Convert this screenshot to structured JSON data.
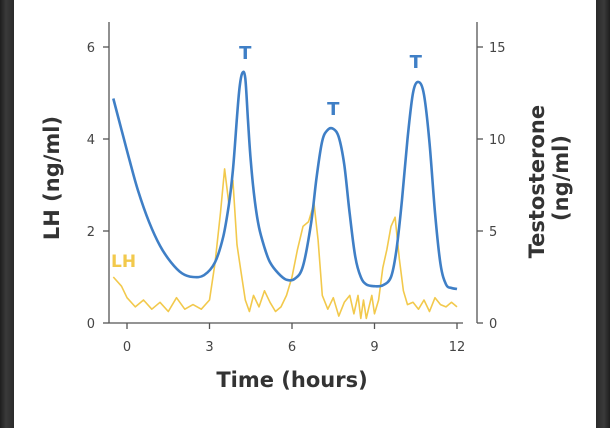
{
  "chart_data": {
    "type": "line",
    "xlabel": "Time (hours)",
    "ylabel_left": "LH (ng/ml)",
    "ylabel_right": "Testosterone (ng/ml)",
    "xlim": [
      -0.5,
      12
    ],
    "xticks": [
      0,
      3,
      6,
      9,
      12
    ],
    "ylim_left": [
      0,
      6
    ],
    "yticks_left": [
      0,
      2,
      4,
      6
    ],
    "ylim_right": [
      0,
      15
    ],
    "yticks_right": [
      0,
      5,
      10,
      15
    ],
    "grid": false,
    "colors": {
      "lh": "#f2c94c",
      "testosterone": "#3f7fc6",
      "axis": "#555555"
    },
    "series": [
      {
        "name": "LH",
        "axis": "left",
        "x": [
          -0.5,
          -0.2,
          0.0,
          0.3,
          0.6,
          0.9,
          1.2,
          1.5,
          1.8,
          2.1,
          2.4,
          2.7,
          3.0,
          3.2,
          3.4,
          3.55,
          3.7,
          3.85,
          4.0,
          4.15,
          4.3,
          4.45,
          4.6,
          4.8,
          5.0,
          5.2,
          5.4,
          5.6,
          5.8,
          6.0,
          6.2,
          6.4,
          6.6,
          6.8,
          6.95,
          7.1,
          7.3,
          7.5,
          7.7,
          7.9,
          8.1,
          8.25,
          8.4,
          8.5,
          8.6,
          8.7,
          8.8,
          8.9,
          9.0,
          9.15,
          9.3,
          9.45,
          9.6,
          9.75,
          9.9,
          10.05,
          10.2,
          10.4,
          10.6,
          10.8,
          11.0,
          11.2,
          11.4,
          11.6,
          11.8,
          12.0
        ],
        "y": [
          1.0,
          0.8,
          0.55,
          0.35,
          0.5,
          0.3,
          0.45,
          0.25,
          0.55,
          0.3,
          0.4,
          0.3,
          0.5,
          1.3,
          2.4,
          3.35,
          2.6,
          3.1,
          1.7,
          1.1,
          0.5,
          0.25,
          0.6,
          0.35,
          0.7,
          0.45,
          0.25,
          0.35,
          0.6,
          1.0,
          1.6,
          2.1,
          2.2,
          2.6,
          1.8,
          0.6,
          0.3,
          0.55,
          0.15,
          0.45,
          0.6,
          0.2,
          0.6,
          0.1,
          0.5,
          0.1,
          0.35,
          0.6,
          0.2,
          0.5,
          1.2,
          1.6,
          2.1,
          2.3,
          1.4,
          0.7,
          0.4,
          0.45,
          0.3,
          0.5,
          0.25,
          0.55,
          0.4,
          0.35,
          0.45,
          0.35
        ]
      },
      {
        "name": "Testosterone",
        "axis": "right",
        "x": [
          -0.5,
          -0.2,
          0.1,
          0.4,
          0.8,
          1.2,
          1.6,
          2.0,
          2.4,
          2.8,
          3.2,
          3.5,
          3.7,
          3.85,
          4.0,
          4.1,
          4.2,
          4.3,
          4.4,
          4.5,
          4.65,
          4.8,
          5.0,
          5.2,
          5.5,
          5.8,
          6.1,
          6.4,
          6.7,
          6.9,
          7.1,
          7.3,
          7.5,
          7.7,
          7.9,
          8.1,
          8.3,
          8.5,
          8.7,
          9.0,
          9.3,
          9.6,
          9.8,
          10.0,
          10.2,
          10.4,
          10.6,
          10.8,
          11.0,
          11.2,
          11.4,
          11.6,
          11.8,
          12.0
        ],
        "y": [
          12.2,
          10.5,
          8.8,
          7.2,
          5.5,
          4.2,
          3.3,
          2.7,
          2.5,
          2.6,
          3.3,
          4.7,
          6.4,
          8.3,
          11.2,
          12.9,
          13.6,
          13.3,
          11.0,
          8.8,
          6.6,
          5.2,
          4.1,
          3.3,
          2.7,
          2.35,
          2.4,
          3.1,
          5.5,
          8.0,
          9.9,
          10.5,
          10.55,
          10.1,
          8.6,
          5.9,
          3.6,
          2.5,
          2.1,
          2.0,
          2.05,
          2.5,
          4.0,
          6.7,
          10.0,
          12.5,
          13.1,
          12.4,
          9.8,
          6.0,
          3.2,
          2.1,
          1.9,
          1.85
        ]
      }
    ],
    "series_labels": {
      "lh": "LH"
    },
    "peak_labels": [
      {
        "text": "T",
        "x": 4.3,
        "y_right": 13.6
      },
      {
        "text": "T",
        "x": 7.5,
        "y_right": 10.55
      },
      {
        "text": "T",
        "x": 10.5,
        "y_right": 13.1
      }
    ]
  }
}
